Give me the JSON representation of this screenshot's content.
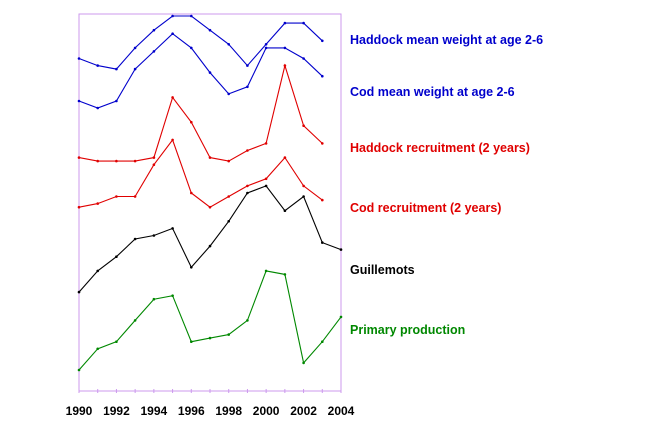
{
  "chart_data": {
    "type": "line",
    "title": "",
    "xlabel": "",
    "ylabel": "",
    "x_ticks": [
      "1990",
      "1992",
      "1994",
      "1996",
      "1998",
      "2000",
      "2002",
      "2004"
    ],
    "xlim": [
      1990,
      2004
    ],
    "y_axis": "none (series are vertically offset, unitless)",
    "grid": false,
    "legend_placement": "right",
    "series": [
      {
        "name": "Haddock mean weight at age 2-6",
        "color": "#0000cc",
        "x": [
          1990,
          1991,
          1992,
          1993,
          1994,
          1995,
          1996,
          1997,
          1998,
          1999,
          2000,
          2001,
          2002,
          2003
        ],
        "values": [
          0.88,
          0.86,
          0.85,
          0.91,
          0.96,
          1.0,
          1.0,
          0.96,
          0.92,
          0.86,
          0.92,
          0.98,
          0.98,
          0.93
        ]
      },
      {
        "name": "Cod mean weight at age 2-6",
        "color": "#0000cc",
        "x": [
          1990,
          1991,
          1992,
          1993,
          1994,
          1995,
          1996,
          1997,
          1998,
          1999,
          2000,
          2001,
          2002,
          2003
        ],
        "values": [
          0.76,
          0.74,
          0.76,
          0.85,
          0.9,
          0.95,
          0.91,
          0.84,
          0.78,
          0.8,
          0.91,
          0.91,
          0.88,
          0.83
        ]
      },
      {
        "name": "Haddock recruitment (2 years)",
        "color": "#e00000",
        "x": [
          1990,
          1991,
          1992,
          1993,
          1994,
          1995,
          1996,
          1997,
          1998,
          1999,
          2000,
          2001,
          2002,
          2003
        ],
        "values": [
          0.6,
          0.59,
          0.59,
          0.59,
          0.6,
          0.77,
          0.7,
          0.6,
          0.59,
          0.62,
          0.64,
          0.86,
          0.69,
          0.64
        ]
      },
      {
        "name": "Cod recruitment (2 years)",
        "color": "#e00000",
        "x": [
          1990,
          1991,
          1992,
          1993,
          1994,
          1995,
          1996,
          1997,
          1998,
          1999,
          2000,
          2001,
          2002,
          2003
        ],
        "values": [
          0.46,
          0.47,
          0.49,
          0.49,
          0.58,
          0.65,
          0.5,
          0.46,
          0.49,
          0.52,
          0.54,
          0.6,
          0.52,
          0.48
        ]
      },
      {
        "name": "Guillemots",
        "color": "#000000",
        "x": [
          1990,
          1991,
          1992,
          1993,
          1994,
          1995,
          1996,
          1997,
          1998,
          1999,
          2000,
          2001,
          2002,
          2003,
          2004
        ],
        "values": [
          0.22,
          0.28,
          0.32,
          0.37,
          0.38,
          0.4,
          0.29,
          0.35,
          0.42,
          0.5,
          0.52,
          0.45,
          0.49,
          0.36,
          0.34
        ]
      },
      {
        "name": "Primary production",
        "color": "#008800",
        "x": [
          1990,
          1991,
          1992,
          1993,
          1994,
          1995,
          1996,
          1997,
          1998,
          1999,
          2000,
          2001,
          2002,
          2003,
          2004
        ],
        "values": [
          0.0,
          0.06,
          0.08,
          0.14,
          0.2,
          0.21,
          0.08,
          0.09,
          0.1,
          0.14,
          0.28,
          0.27,
          0.02,
          0.08,
          0.15
        ]
      }
    ]
  }
}
